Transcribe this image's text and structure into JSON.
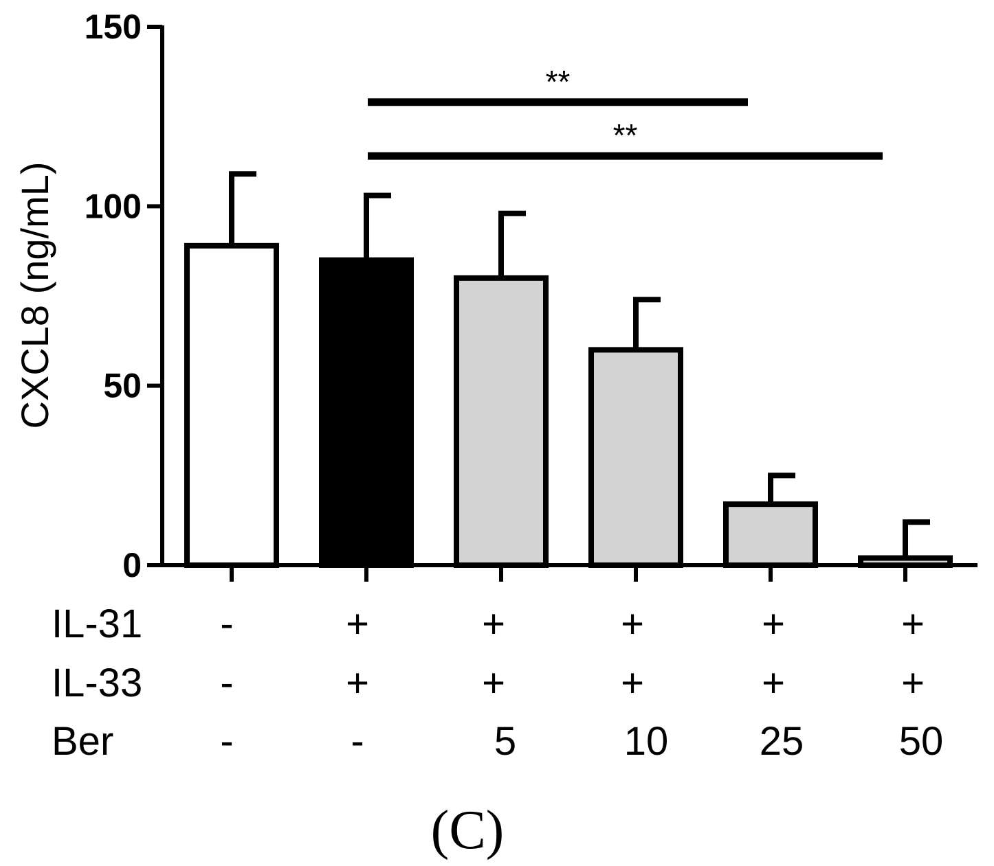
{
  "chart_data": {
    "type": "bar",
    "ylabel": "CXCL8 (ng/mL)",
    "ylim": [
      0,
      150
    ],
    "yticks": [
      0,
      50,
      100,
      150
    ],
    "values": [
      89,
      85,
      80,
      60,
      17,
      2
    ],
    "errors": [
      20,
      18,
      18,
      14,
      8,
      10
    ],
    "fill_colors": [
      "#ffffff",
      "#000000",
      "#d3d3d3",
      "#d3d3d3",
      "#d3d3d3",
      "#d3d3d3"
    ],
    "conditions": [
      {
        "label": "IL-31",
        "values": [
          "-",
          "+",
          "+",
          "+",
          "+",
          "+"
        ]
      },
      {
        "label": "IL-33",
        "values": [
          "-",
          "+",
          "+",
          "+",
          "+",
          "+"
        ]
      },
      {
        "label": "Ber",
        "values": [
          "-",
          "-",
          "5",
          "10",
          "25",
          "50"
        ]
      }
    ],
    "significance": [
      {
        "from": 1,
        "to": 4,
        "y": 129,
        "label": "**"
      },
      {
        "from": 1,
        "to": 5,
        "y": 114,
        "label": "**"
      }
    ],
    "panel_label": "(C)"
  }
}
